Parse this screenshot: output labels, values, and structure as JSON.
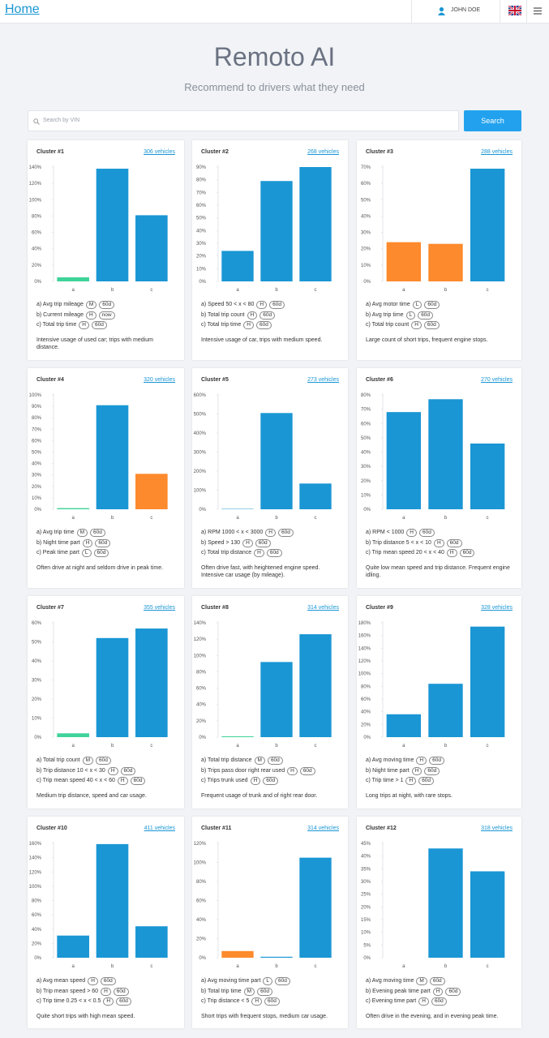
{
  "header": {
    "home": "Home",
    "user": "JOHN DOE"
  },
  "hero": {
    "title": "Remoto AI",
    "subtitle": "Recommend to drivers what they need"
  },
  "search": {
    "placeholder": "Search by VIN",
    "button": "Search"
  },
  "clusters": [
    {
      "title": "Cluster #1",
      "link": "306 vehicles",
      "chart": {
        "type": "bar",
        "categories": [
          "a",
          "b",
          "c"
        ],
        "values": [
          5,
          138,
          81
        ],
        "colors": [
          "#3fd39a",
          "#1a96d4",
          "#1a96d4"
        ],
        "ylim": [
          0,
          140
        ],
        "yticks": [
          {
            "value": 0,
            "label": "0%"
          },
          {
            "value": 20,
            "label": "20%"
          },
          {
            "value": 40,
            "label": "40%"
          },
          {
            "value": 60,
            "label": "60%"
          },
          {
            "value": 80,
            "label": "80%"
          },
          {
            "value": 100,
            "label": "100%"
          },
          {
            "value": 120,
            "label": "120%"
          },
          {
            "value": 140,
            "label": "140%"
          }
        ]
      },
      "features": [
        {
          "text": "a) Avg trip mileage",
          "tags": [
            "M",
            "60d"
          ]
        },
        {
          "text": "b) Current mileage",
          "tags": [
            "H",
            "now"
          ]
        },
        {
          "text": "c) Total trip time",
          "tags": [
            "H",
            "60d"
          ]
        }
      ],
      "description": "Intensive usage of used car; trips with medium distance."
    },
    {
      "title": "Cluster #2",
      "link": "268 vehicles",
      "chart": {
        "type": "bar",
        "categories": [
          "a",
          "b",
          "c"
        ],
        "values": [
          24,
          79,
          90
        ],
        "colors": [
          "#1a96d4",
          "#1a96d4",
          "#1a96d4"
        ],
        "ylim": [
          0,
          90
        ],
        "yticks": [
          {
            "value": 0,
            "label": "0%"
          },
          {
            "value": 10,
            "label": "10%"
          },
          {
            "value": 20,
            "label": "20%"
          },
          {
            "value": 30,
            "label": "30%"
          },
          {
            "value": 40,
            "label": "40%"
          },
          {
            "value": 50,
            "label": "50%"
          },
          {
            "value": 60,
            "label": "60%"
          },
          {
            "value": 70,
            "label": "70%"
          },
          {
            "value": 80,
            "label": "80%"
          },
          {
            "value": 90,
            "label": "90%"
          }
        ]
      },
      "features": [
        {
          "text": "a) Speed 50 < x < 80",
          "tags": [
            "H",
            "60d"
          ]
        },
        {
          "text": "b) Total trip count",
          "tags": [
            "H",
            "60d"
          ]
        },
        {
          "text": "c) Total trip time",
          "tags": [
            "H",
            "60d"
          ]
        }
      ],
      "description": "Intensive usage of car, trips with medium speed."
    },
    {
      "title": "Cluster #3",
      "link": "288 vehicles",
      "chart": {
        "type": "bar",
        "categories": [
          "a",
          "b",
          "c"
        ],
        "values": [
          24,
          23,
          69
        ],
        "colors": [
          "#fd8a2c",
          "#fd8a2c",
          "#1a96d4"
        ],
        "ylim": [
          0,
          70
        ],
        "yticks": [
          {
            "value": 0,
            "label": "0%"
          },
          {
            "value": 10,
            "label": "10%"
          },
          {
            "value": 20,
            "label": "20%"
          },
          {
            "value": 30,
            "label": "30%"
          },
          {
            "value": 40,
            "label": "40%"
          },
          {
            "value": 50,
            "label": "50%"
          },
          {
            "value": 60,
            "label": "60%"
          },
          {
            "value": 70,
            "label": "70%"
          }
        ]
      },
      "features": [
        {
          "text": "a) Avg motor time",
          "tags": [
            "L",
            "60d"
          ]
        },
        {
          "text": "b) Avg trip time",
          "tags": [
            "L",
            "60d"
          ]
        },
        {
          "text": "c) Total trip count",
          "tags": [
            "H",
            "60d"
          ]
        }
      ],
      "description": "Large count of short trips, frequent engine stops."
    },
    {
      "title": "Cluster #4",
      "link": "320 vehicles",
      "chart": {
        "type": "bar",
        "categories": [
          "a",
          "b",
          "c"
        ],
        "values": [
          1,
          91,
          31
        ],
        "colors": [
          "#3fd39a",
          "#1a96d4",
          "#fd8a2c"
        ],
        "ylim": [
          0,
          100
        ],
        "yticks": [
          {
            "value": 0,
            "label": "0%"
          },
          {
            "value": 10,
            "label": "10%"
          },
          {
            "value": 20,
            "label": "20%"
          },
          {
            "value": 30,
            "label": "30%"
          },
          {
            "value": 40,
            "label": "40%"
          },
          {
            "value": 50,
            "label": "50%"
          },
          {
            "value": 60,
            "label": "60%"
          },
          {
            "value": 70,
            "label": "70%"
          },
          {
            "value": 80,
            "label": "80%"
          },
          {
            "value": 90,
            "label": "90%"
          },
          {
            "value": 100,
            "label": "100%"
          }
        ]
      },
      "features": [
        {
          "text": "a) Avg trip time",
          "tags": [
            "M",
            "60d"
          ]
        },
        {
          "text": "b) Night time part",
          "tags": [
            "H",
            "60d"
          ]
        },
        {
          "text": "c) Peak time part",
          "tags": [
            "L",
            "60d"
          ]
        }
      ],
      "description": "Often drive at night and seldom drive in peak time."
    },
    {
      "title": "Cluster #5",
      "link": "273 vehicles",
      "chart": {
        "type": "bar",
        "categories": [
          "a",
          "b",
          "c"
        ],
        "values": [
          2,
          505,
          135
        ],
        "colors": [
          "#1a96d4",
          "#1a96d4",
          "#1a96d4"
        ],
        "ylim": [
          0,
          600
        ],
        "yticks": [
          {
            "value": 0,
            "label": "0%"
          },
          {
            "value": 100,
            "label": "100%"
          },
          {
            "value": 200,
            "label": "200%"
          },
          {
            "value": 300,
            "label": "300%"
          },
          {
            "value": 400,
            "label": "400%"
          },
          {
            "value": 500,
            "label": "500%"
          },
          {
            "value": 600,
            "label": "600%"
          }
        ]
      },
      "features": [
        {
          "text": "a) RPM 1000 < x < 3000",
          "tags": [
            "H",
            "60d"
          ]
        },
        {
          "text": "b) Speed > 130",
          "tags": [
            "H",
            "60d"
          ]
        },
        {
          "text": "c) Total trip distance",
          "tags": [
            "H",
            "60d"
          ]
        }
      ],
      "description": "Often drive fast, with heightened engine speed. Intensive car usage (by mileage)."
    },
    {
      "title": "Cluster #6",
      "link": "270 vehicles",
      "chart": {
        "type": "bar",
        "categories": [
          "a",
          "b",
          "c"
        ],
        "values": [
          68,
          77,
          46
        ],
        "colors": [
          "#1a96d4",
          "#1a96d4",
          "#1a96d4"
        ],
        "ylim": [
          0,
          80
        ],
        "yticks": [
          {
            "value": 0,
            "label": "0%"
          },
          {
            "value": 10,
            "label": "10%"
          },
          {
            "value": 20,
            "label": "20%"
          },
          {
            "value": 30,
            "label": "30%"
          },
          {
            "value": 40,
            "label": "40%"
          },
          {
            "value": 50,
            "label": "50%"
          },
          {
            "value": 60,
            "label": "60%"
          },
          {
            "value": 70,
            "label": "70%"
          },
          {
            "value": 80,
            "label": "80%"
          }
        ]
      },
      "features": [
        {
          "text": "a) RPM < 1000",
          "tags": [
            "H",
            "60d"
          ]
        },
        {
          "text": "b) Trip distance 5 < x < 10",
          "tags": [
            "H",
            "60d"
          ]
        },
        {
          "text": "c) Trip mean speed 20 < x < 40",
          "tags": [
            "H",
            "60d"
          ]
        }
      ],
      "description": "Quite low mean speed and trip distance. Frequent engine idling."
    },
    {
      "title": "Cluster #7",
      "link": "355 vehicles",
      "chart": {
        "type": "bar",
        "categories": [
          "a",
          "b",
          "c"
        ],
        "values": [
          2,
          52,
          57
        ],
        "colors": [
          "#3fd39a",
          "#1a96d4",
          "#1a96d4"
        ],
        "ylim": [
          0,
          60
        ],
        "yticks": [
          {
            "value": 0,
            "label": "0%"
          },
          {
            "value": 10,
            "label": "10%"
          },
          {
            "value": 20,
            "label": "20%"
          },
          {
            "value": 30,
            "label": "30%"
          },
          {
            "value": 40,
            "label": "40%"
          },
          {
            "value": 50,
            "label": "50%"
          },
          {
            "value": 60,
            "label": "60%"
          }
        ]
      },
      "features": [
        {
          "text": "a) Total trip count",
          "tags": [
            "M",
            "60d"
          ]
        },
        {
          "text": "b) Trip distance 10 < x < 30",
          "tags": [
            "H",
            "60d"
          ]
        },
        {
          "text": "c) Trip mean speed 40 < x < 60",
          "tags": [
            "H",
            "60d"
          ]
        }
      ],
      "description": "Medium trip distance, speed and car usage."
    },
    {
      "title": "Cluster #8",
      "link": "314 vehicles",
      "chart": {
        "type": "bar",
        "categories": [
          "a",
          "b",
          "c"
        ],
        "values": [
          1,
          92,
          126
        ],
        "colors": [
          "#3fd39a",
          "#1a96d4",
          "#1a96d4"
        ],
        "ylim": [
          0,
          140
        ],
        "yticks": [
          {
            "value": 0,
            "label": "0%"
          },
          {
            "value": 20,
            "label": "20%"
          },
          {
            "value": 40,
            "label": "40%"
          },
          {
            "value": 60,
            "label": "60%"
          },
          {
            "value": 80,
            "label": "80%"
          },
          {
            "value": 100,
            "label": "100%"
          },
          {
            "value": 120,
            "label": "120%"
          },
          {
            "value": 140,
            "label": "140%"
          }
        ]
      },
      "features": [
        {
          "text": "a) Total trip distance",
          "tags": [
            "M",
            "60d"
          ]
        },
        {
          "text": "b) Trips pass door right rear used",
          "tags": [
            "H",
            "60d"
          ]
        },
        {
          "text": "c) Trips trunk used",
          "tags": [
            "H",
            "60d"
          ]
        }
      ],
      "description": "Frequent usage of trunk and of right rear door."
    },
    {
      "title": "Cluster #9",
      "link": "328 vehicles",
      "chart": {
        "type": "bar",
        "categories": [
          "a",
          "b",
          "c"
        ],
        "values": [
          36,
          84,
          174
        ],
        "colors": [
          "#1a96d4",
          "#1a96d4",
          "#1a96d4"
        ],
        "ylim": [
          0,
          180
        ],
        "yticks": [
          {
            "value": 0,
            "label": "0%"
          },
          {
            "value": 20,
            "label": "20%"
          },
          {
            "value": 40,
            "label": "40%"
          },
          {
            "value": 60,
            "label": "60%"
          },
          {
            "value": 80,
            "label": "80%"
          },
          {
            "value": 100,
            "label": "100%"
          },
          {
            "value": 120,
            "label": "120%"
          },
          {
            "value": 140,
            "label": "140%"
          },
          {
            "value": 160,
            "label": "160%"
          },
          {
            "value": 180,
            "label": "180%"
          }
        ]
      },
      "features": [
        {
          "text": "a) Avg moving time",
          "tags": [
            "H",
            "60d"
          ]
        },
        {
          "text": "b) Night time part",
          "tags": [
            "H",
            "60d"
          ]
        },
        {
          "text": "c) Trip time > 1",
          "tags": [
            "H",
            "60d"
          ]
        }
      ],
      "description": "Long trips at night, with rare stops."
    },
    {
      "title": "Cluster #10",
      "link": "411 vehicles",
      "chart": {
        "type": "bar",
        "categories": [
          "a",
          "b",
          "c"
        ],
        "values": [
          31,
          159,
          44
        ],
        "colors": [
          "#1a96d4",
          "#1a96d4",
          "#1a96d4"
        ],
        "ylim": [
          0,
          160
        ],
        "yticks": [
          {
            "value": 0,
            "label": "0%"
          },
          {
            "value": 20,
            "label": "20%"
          },
          {
            "value": 40,
            "label": "40%"
          },
          {
            "value": 60,
            "label": "60%"
          },
          {
            "value": 80,
            "label": "80%"
          },
          {
            "value": 100,
            "label": "100%"
          },
          {
            "value": 120,
            "label": "120%"
          },
          {
            "value": 140,
            "label": "140%"
          },
          {
            "value": 160,
            "label": "160%"
          }
        ]
      },
      "features": [
        {
          "text": "a) Avg mean speed",
          "tags": [
            "H",
            "60d"
          ]
        },
        {
          "text": "b) Trip mean speed > 60",
          "tags": [
            "H",
            "60d"
          ]
        },
        {
          "text": "c) Trip time 0.25 < x < 0.5",
          "tags": [
            "H",
            "60d"
          ]
        }
      ],
      "description": "Quite short trips with high mean speed."
    },
    {
      "title": "Cluster #11",
      "link": "314 vehicles",
      "chart": {
        "type": "bar",
        "categories": [
          "a",
          "b",
          "c"
        ],
        "values": [
          7,
          1,
          105
        ],
        "colors": [
          "#fd8a2c",
          "#1a96d4",
          "#1a96d4"
        ],
        "ylim": [
          0,
          120
        ],
        "yticks": [
          {
            "value": 0,
            "label": "0%"
          },
          {
            "value": 20,
            "label": "20%"
          },
          {
            "value": 40,
            "label": "40%"
          },
          {
            "value": 60,
            "label": "60%"
          },
          {
            "value": 80,
            "label": "80%"
          },
          {
            "value": 100,
            "label": "100%"
          },
          {
            "value": 120,
            "label": "120%"
          }
        ]
      },
      "features": [
        {
          "text": "a) Avg moving time part",
          "tags": [
            "L",
            "60d"
          ]
        },
        {
          "text": "b) Total trip time",
          "tags": [
            "M",
            "60d"
          ]
        },
        {
          "text": "c) Trip distance < 5",
          "tags": [
            "H",
            "60d"
          ]
        }
      ],
      "description": "Short trips with frequent stops, medium car usage."
    },
    {
      "title": "Cluster #12",
      "link": "318 vehicles",
      "chart": {
        "type": "bar",
        "categories": [
          "a",
          "b",
          "c"
        ],
        "values": [
          0,
          43,
          34
        ],
        "colors": [
          "#1a96d4",
          "#1a96d4",
          "#1a96d4"
        ],
        "ylim": [
          0,
          45
        ],
        "yticks": [
          {
            "value": 0,
            "label": "0%"
          },
          {
            "value": 5,
            "label": "5%"
          },
          {
            "value": 10,
            "label": "10%"
          },
          {
            "value": 15,
            "label": "15%"
          },
          {
            "value": 20,
            "label": "20%"
          },
          {
            "value": 25,
            "label": "25%"
          },
          {
            "value": 30,
            "label": "30%"
          },
          {
            "value": 35,
            "label": "35%"
          },
          {
            "value": 40,
            "label": "40%"
          },
          {
            "value": 45,
            "label": "45%"
          }
        ]
      },
      "features": [
        {
          "text": "a) Avg moving time",
          "tags": [
            "M",
            "60d"
          ]
        },
        {
          "text": "b) Evening peak time part",
          "tags": [
            "H",
            "60d"
          ]
        },
        {
          "text": "c) Evening time part",
          "tags": [
            "H",
            "60d"
          ]
        }
      ],
      "description": "Often drive in the evening, and in evening peak time."
    }
  ]
}
